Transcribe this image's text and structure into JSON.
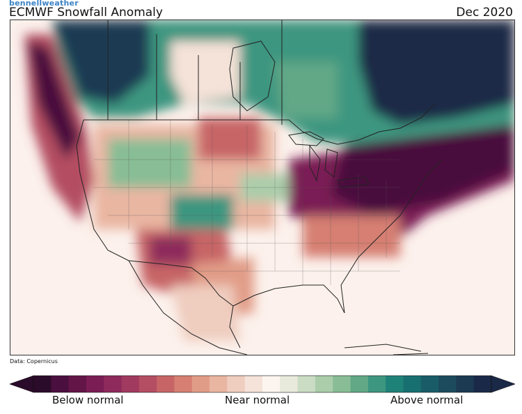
{
  "brand": "bennellweather",
  "title": "ECMWF Snowfall Anomaly",
  "period": "Dec 2020",
  "source": "Data: Copernicus",
  "legend": {
    "below_label": "Below normal",
    "near_label": "Near normal",
    "above_label": "Above normal",
    "colors": [
      "#2b0b2a",
      "#4a0f3e",
      "#631547",
      "#7a1d55",
      "#8e2a5c",
      "#a13a5f",
      "#b44e62",
      "#c76566",
      "#d67f72",
      "#e19c87",
      "#e9b6a2",
      "#efcdbf",
      "#f5e2d8",
      "#fcf4ef",
      "#e8eadb",
      "#cbdcc4",
      "#abcdaa",
      "#88bd95",
      "#62a887",
      "#3d9680",
      "#1f8279",
      "#176f70",
      "#195c68",
      "#1c4b5d",
      "#1c3a52",
      "#1a2947"
    ]
  },
  "map_colors": {
    "ocean_base": "#fcf1ec",
    "strong_above": "#1a2947",
    "above": "#1f8279",
    "light_above": "#88bd95",
    "strong_below": "#4a0f3e",
    "below": "#a13a5f",
    "light_below": "#e19c87",
    "border": "#222222"
  }
}
